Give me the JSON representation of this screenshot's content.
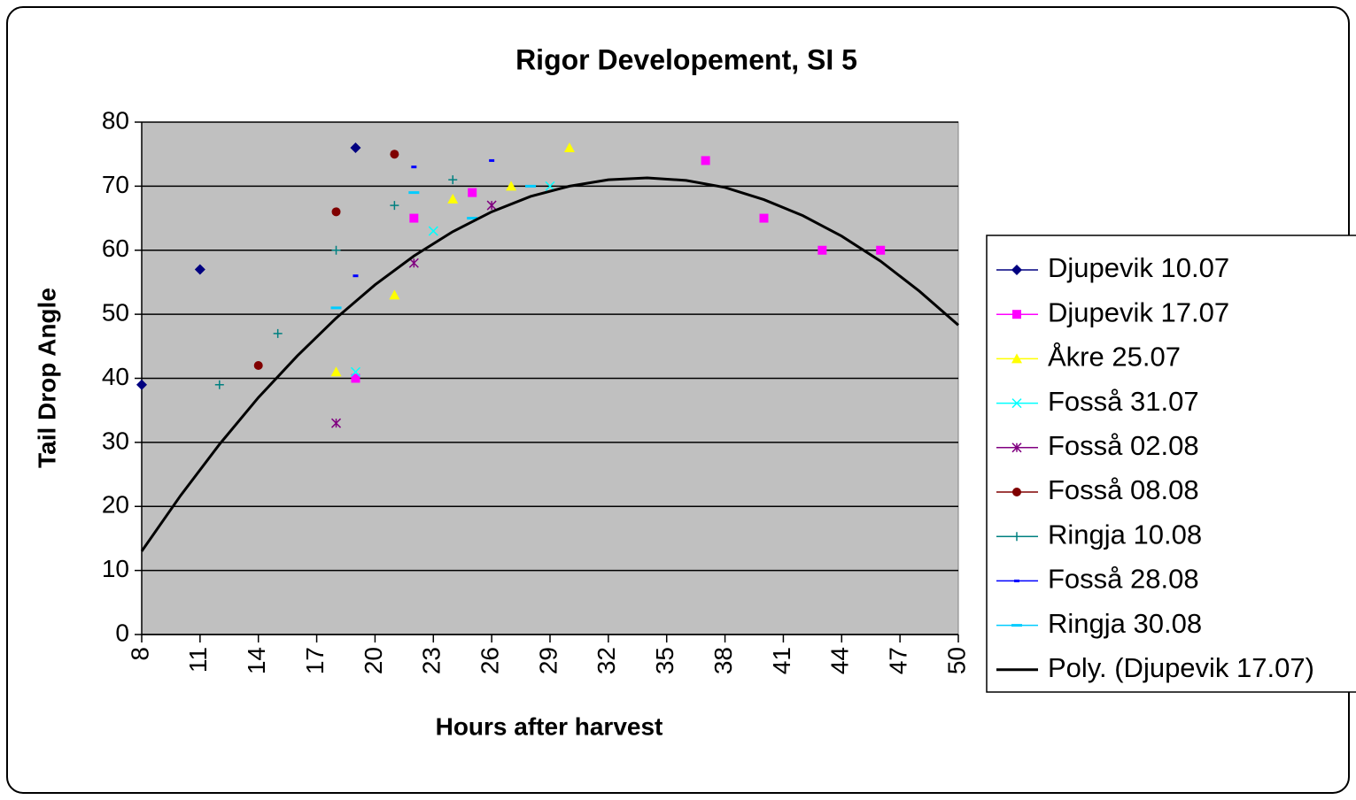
{
  "chart_data": {
    "type": "scatter",
    "title": "Rigor Developement, SI 5",
    "x_label": "Hours after harvest",
    "y_label": "Tail Drop Angle",
    "xlim": [
      8,
      50
    ],
    "xticks": [
      8,
      11,
      14,
      17,
      20,
      23,
      26,
      29,
      32,
      35,
      38,
      41,
      44,
      47,
      50
    ],
    "ylim": [
      0,
      80
    ],
    "yticks": [
      0,
      10,
      20,
      30,
      40,
      50,
      60,
      70,
      80
    ],
    "grid": true,
    "legend": "right",
    "plot_background": "#c0c0c0",
    "series": [
      {
        "name": "Djupevik 10.07",
        "color": "#000080",
        "marker": "diamond",
        "x": [
          8,
          11,
          19
        ],
        "values": [
          39,
          57,
          76
        ]
      },
      {
        "name": "Djupevik 17.07",
        "color": "#ff00ff",
        "marker": "square",
        "x": [
          19,
          22,
          25,
          37,
          40,
          43,
          46
        ],
        "values": [
          40,
          65,
          69,
          74,
          65,
          60,
          60
        ]
      },
      {
        "name": "Åkre 25.07",
        "color": "#ffff00",
        "marker": "triangle",
        "x": [
          18,
          21,
          24,
          27,
          30
        ],
        "values": [
          41,
          53,
          68,
          70,
          76
        ]
      },
      {
        "name": "Fosså 31.07",
        "color": "#00ffff",
        "marker": "x",
        "x": [
          19,
          23,
          29
        ],
        "values": [
          41,
          63,
          70
        ]
      },
      {
        "name": "Fosså 02.08",
        "color": "#800080",
        "marker": "star",
        "x": [
          18,
          22,
          26
        ],
        "values": [
          33,
          58,
          67
        ]
      },
      {
        "name": "Fosså 08.08",
        "color": "#800000",
        "marker": "circle",
        "x": [
          14,
          18,
          21
        ],
        "values": [
          42,
          66,
          75
        ]
      },
      {
        "name": "Ringja 10.08",
        "color": "#008080",
        "marker": "plus",
        "x": [
          12,
          15,
          18,
          21,
          24
        ],
        "values": [
          39,
          47,
          60,
          67,
          71
        ]
      },
      {
        "name": "Fosså 28.08",
        "color": "#0000ff",
        "marker": "dash",
        "x": [
          19,
          22,
          26
        ],
        "values": [
          56,
          73,
          74
        ]
      },
      {
        "name": "Ringja 30.08",
        "color": "#00ccff",
        "marker": "longdash",
        "x": [
          18,
          22,
          25,
          28
        ],
        "values": [
          51,
          69,
          65,
          70
        ]
      },
      {
        "name": "Poly. (Djupevik 17.07)",
        "color": "#000000",
        "marker": "line",
        "x": [
          8,
          10,
          12,
          14,
          16,
          18,
          20,
          22,
          24,
          26,
          28,
          30,
          32,
          34,
          36,
          38,
          40,
          42,
          44,
          46,
          48,
          50
        ],
        "values": [
          13.0,
          21.7,
          29.7,
          37.0,
          43.5,
          49.4,
          54.6,
          59.1,
          62.9,
          66.0,
          68.4,
          70.0,
          71.0,
          71.3,
          70.9,
          69.8,
          67.9,
          65.4,
          62.2,
          58.3,
          53.6,
          48.3
        ]
      }
    ]
  }
}
